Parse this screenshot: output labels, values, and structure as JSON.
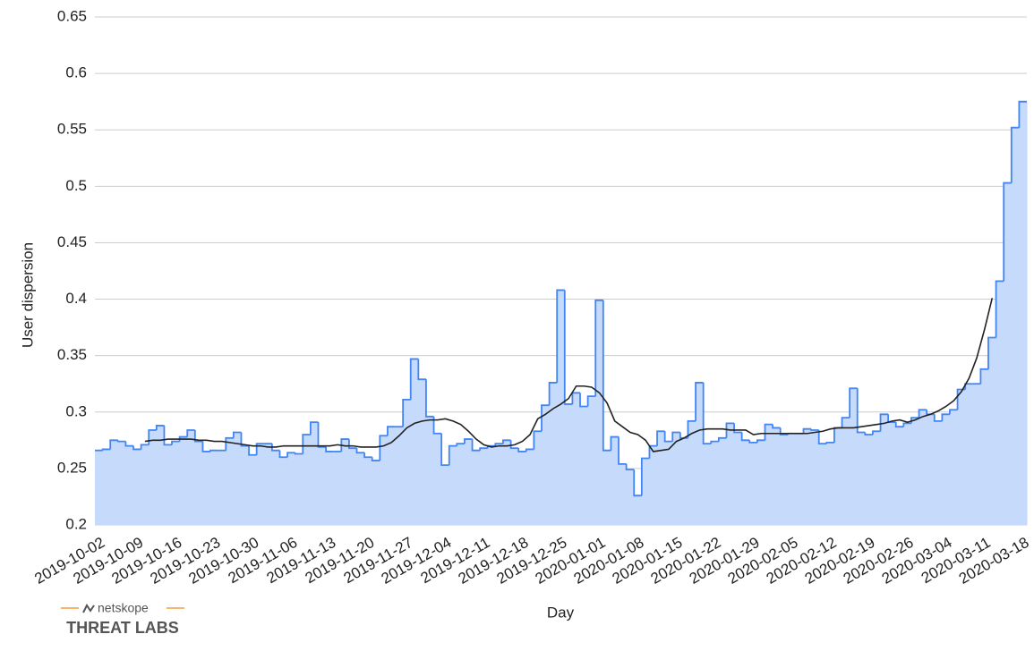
{
  "chart_data": {
    "type": "step-area",
    "x_label": "Day",
    "y_label": "User dispersion",
    "categories": [
      "2019-10-02",
      null,
      null,
      null,
      null,
      "2019-10-09",
      null,
      null,
      null,
      null,
      "2019-10-16",
      null,
      null,
      null,
      null,
      "2019-10-23",
      null,
      null,
      null,
      null,
      "2019-10-30",
      null,
      null,
      null,
      null,
      "2019-11-06",
      null,
      null,
      null,
      null,
      "2019-11-13",
      null,
      null,
      null,
      null,
      "2019-11-20",
      null,
      null,
      null,
      null,
      "2019-11-27",
      null,
      null,
      null,
      null,
      "2019-12-04",
      null,
      null,
      null,
      null,
      "2019-12-11",
      null,
      null,
      null,
      null,
      "2019-12-18",
      null,
      null,
      null,
      null,
      "2019-12-25",
      null,
      null,
      null,
      null,
      "2020-01-01",
      null,
      null,
      null,
      null,
      "2020-01-08",
      null,
      null,
      null,
      null,
      "2020-01-15",
      null,
      null,
      null,
      null,
      "2020-01-22",
      null,
      null,
      null,
      null,
      "2020-01-29",
      null,
      null,
      null,
      null,
      "2020-02-05",
      null,
      null,
      null,
      null,
      "2020-02-12",
      null,
      null,
      null,
      null,
      "2020-02-19",
      null,
      null,
      null,
      null,
      "2020-02-26",
      null,
      null,
      null,
      null,
      "2020-03-04",
      null,
      null,
      null,
      null,
      "2020-03-11",
      null,
      null,
      null,
      null,
      "2020-03-18"
    ],
    "series": [
      {
        "color": "#4285f4",
        "fill": "#c6dafc",
        "values": [
          0.266,
          0.267,
          0.275,
          0.274,
          0.27,
          0.267,
          0.271,
          0.284,
          0.288,
          0.271,
          0.274,
          0.278,
          0.284,
          0.274,
          0.265,
          0.266,
          0.266,
          0.277,
          0.282,
          0.27,
          0.262,
          0.272,
          0.272,
          0.266,
          0.26,
          0.264,
          0.263,
          0.28,
          0.291,
          0.269,
          0.265,
          0.265,
          0.276,
          0.268,
          0.264,
          0.26,
          0.257,
          0.279,
          0.287,
          0.287,
          0.311,
          0.347,
          0.329,
          0.296,
          0.281,
          0.253,
          0.27,
          0.272,
          0.276,
          0.266,
          0.268,
          0.27,
          0.272,
          0.275,
          0.268,
          0.265,
          0.267,
          0.283,
          0.306,
          0.326,
          0.408,
          0.307,
          0.317,
          0.305,
          0.314,
          0.399,
          0.266,
          0.278,
          0.254,
          0.249,
          0.226,
          0.259,
          0.27,
          0.283,
          0.274,
          0.282,
          0.277,
          0.292,
          0.326,
          0.272,
          0.274,
          0.277,
          0.29,
          0.282,
          0.275,
          0.273,
          0.275,
          0.289,
          0.286,
          0.28,
          0.281,
          0.281,
          0.285,
          0.284,
          0.272,
          0.273,
          0.286,
          0.295,
          0.321,
          0.282,
          0.28,
          0.283,
          0.298,
          0.291,
          0.287,
          0.29,
          0.295,
          0.302,
          0.298,
          0.292,
          0.298,
          0.302,
          0.32,
          0.325,
          0.325,
          0.338,
          0.366,
          0.416,
          0.503,
          0.552,
          0.575
        ]
      },
      {
        "color": "#222222",
        "style": "line",
        "values": [
          null,
          null,
          null,
          null,
          null,
          null,
          0.274,
          0.275,
          0.275,
          0.276,
          0.276,
          0.276,
          0.276,
          0.275,
          0.275,
          0.274,
          0.274,
          0.273,
          0.272,
          0.271,
          0.27,
          0.27,
          0.269,
          0.269,
          0.27,
          0.27,
          0.27,
          0.27,
          0.27,
          0.27,
          0.27,
          0.271,
          0.27,
          0.27,
          0.269,
          0.269,
          0.269,
          0.27,
          0.273,
          0.279,
          0.286,
          0.29,
          0.292,
          0.293,
          0.293,
          0.294,
          0.292,
          0.289,
          0.283,
          0.276,
          0.271,
          0.269,
          0.27,
          0.27,
          0.271,
          0.274,
          0.28,
          0.294,
          0.298,
          0.303,
          0.307,
          0.312,
          0.323,
          0.323,
          0.322,
          0.317,
          0.308,
          0.292,
          0.287,
          0.282,
          0.28,
          0.275,
          0.265,
          0.266,
          0.267,
          0.274,
          0.277,
          0.281,
          0.284,
          0.285,
          0.285,
          0.285,
          0.284,
          0.284,
          0.284,
          0.28,
          0.281,
          0.281,
          0.281,
          0.281,
          0.281,
          0.281,
          0.281,
          0.282,
          0.283,
          0.285,
          0.286,
          0.286,
          0.286,
          0.287,
          0.288,
          0.289,
          0.29,
          0.292,
          0.293,
          0.291,
          0.293,
          0.296,
          0.298,
          0.301,
          0.305,
          0.31,
          0.318,
          0.33,
          0.348,
          0.373,
          0.401,
          null,
          null,
          null,
          null
        ]
      }
    ],
    "ylim": [
      0.2,
      0.65
    ],
    "yticks": [
      0.2,
      0.25,
      0.3,
      0.35,
      0.4,
      0.45,
      0.5,
      0.55,
      0.6,
      0.65
    ],
    "grid": true
  },
  "branding": {
    "name": "netskope",
    "label": "THREAT LABS"
  }
}
